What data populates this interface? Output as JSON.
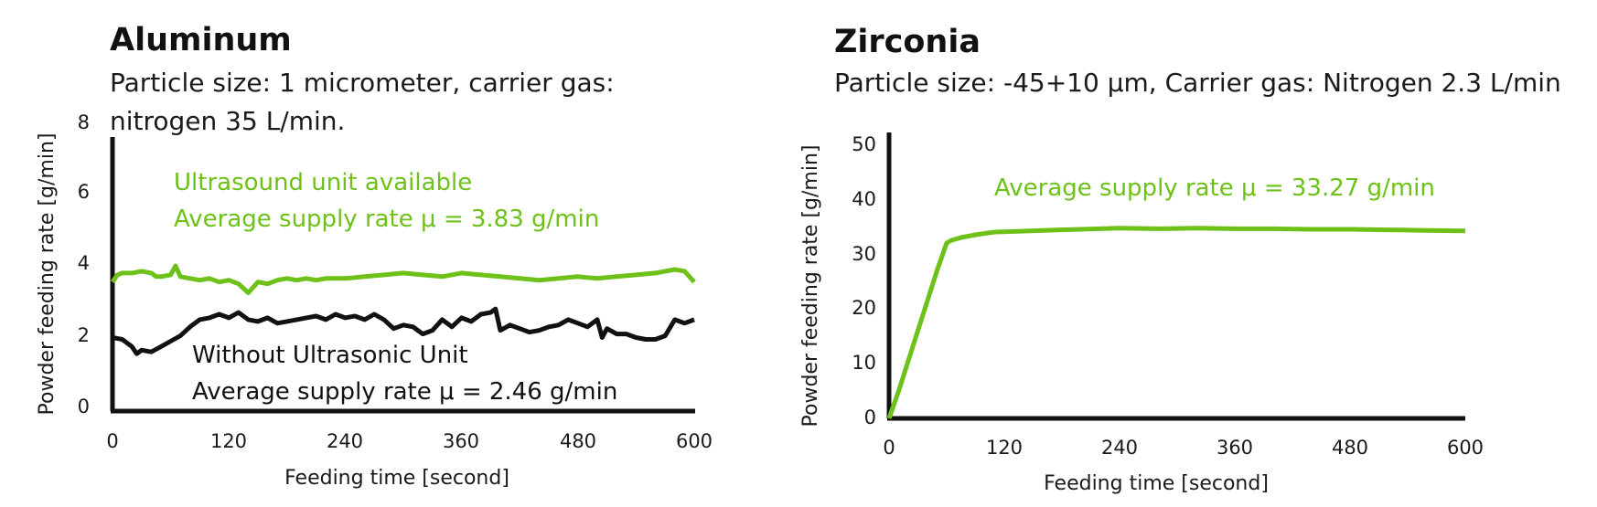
{
  "colors": {
    "green": "#6dc118",
    "black": "#111111"
  },
  "chart_data": [
    {
      "type": "line",
      "title": "Aluminum",
      "subtitle_lines": [
        "Particle size: 1 micrometer, carrier gas:",
        "nitrogen 35 L/min."
      ],
      "xlabel": "Feeding time [second]",
      "ylabel": "Powder feeding rate [g/min]",
      "xlim": [
        0,
        600
      ],
      "ylim": [
        0,
        8
      ],
      "xticks": [
        "0",
        "120",
        "240",
        "360",
        "480",
        "600"
      ],
      "yticks": [
        "0",
        "2",
        "4",
        "6",
        "8"
      ],
      "annotations": [
        {
          "lines": [
            "Ultrasound unit available",
            "Average supply rate μ = 3.83 g/min"
          ],
          "color": "#6dc118"
        },
        {
          "lines": [
            "Without Ultrasonic Unit",
            "Average supply rate μ = 2.46 g/min"
          ],
          "color": "#111111"
        }
      ],
      "series": [
        {
          "color": "#6dc118",
          "x": [
            0,
            5,
            10,
            20,
            30,
            40,
            45,
            50,
            60,
            65,
            70,
            80,
            90,
            100,
            110,
            120,
            130,
            140,
            150,
            160,
            170,
            180,
            190,
            200,
            210,
            220,
            240,
            260,
            280,
            300,
            320,
            340,
            360,
            380,
            400,
            420,
            440,
            460,
            480,
            500,
            520,
            540,
            560,
            580,
            590,
            600
          ],
          "y": [
            3.6,
            3.8,
            3.85,
            3.85,
            3.9,
            3.85,
            3.75,
            3.75,
            3.8,
            4.05,
            3.75,
            3.7,
            3.65,
            3.7,
            3.6,
            3.65,
            3.55,
            3.3,
            3.6,
            3.55,
            3.65,
            3.7,
            3.65,
            3.7,
            3.65,
            3.7,
            3.7,
            3.75,
            3.8,
            3.85,
            3.8,
            3.75,
            3.85,
            3.8,
            3.75,
            3.7,
            3.65,
            3.7,
            3.75,
            3.7,
            3.75,
            3.8,
            3.85,
            3.95,
            3.9,
            3.6
          ]
        },
        {
          "color": "#111111",
          "x": [
            0,
            10,
            20,
            25,
            30,
            40,
            50,
            60,
            70,
            80,
            90,
            100,
            110,
            120,
            130,
            140,
            150,
            160,
            170,
            180,
            190,
            200,
            210,
            220,
            230,
            240,
            250,
            260,
            270,
            280,
            290,
            300,
            310,
            320,
            330,
            340,
            350,
            360,
            370,
            380,
            390,
            395,
            400,
            410,
            420,
            430,
            440,
            450,
            460,
            470,
            480,
            490,
            500,
            505,
            510,
            520,
            530,
            540,
            550,
            560,
            570,
            580,
            590,
            600
          ],
          "y": [
            2.05,
            2.0,
            1.8,
            1.6,
            1.7,
            1.65,
            1.8,
            1.95,
            2.1,
            2.35,
            2.55,
            2.6,
            2.7,
            2.6,
            2.75,
            2.55,
            2.5,
            2.6,
            2.45,
            2.5,
            2.55,
            2.6,
            2.65,
            2.55,
            2.7,
            2.6,
            2.65,
            2.55,
            2.7,
            2.55,
            2.3,
            2.4,
            2.35,
            2.15,
            2.25,
            2.55,
            2.35,
            2.6,
            2.5,
            2.7,
            2.75,
            2.85,
            2.25,
            2.4,
            2.3,
            2.2,
            2.25,
            2.35,
            2.4,
            2.55,
            2.45,
            2.35,
            2.55,
            2.05,
            2.3,
            2.15,
            2.15,
            2.05,
            2.0,
            2.0,
            2.1,
            2.55,
            2.45,
            2.55
          ]
        }
      ]
    },
    {
      "type": "line",
      "title": "Zirconia",
      "subtitle_lines": [
        "Particle size: -45+10 μm, Carrier gas: Nitrogen 2.3 L/min"
      ],
      "xlabel": "Feeding time [second]",
      "ylabel": "Powder feeding rate [g/min]",
      "xlim": [
        0,
        600
      ],
      "ylim": [
        0,
        50
      ],
      "xticks": [
        "0",
        "120",
        "240",
        "360",
        "480",
        "600"
      ],
      "yticks": [
        "0",
        "10",
        "20",
        "30",
        "40",
        "50"
      ],
      "annotations": [
        {
          "lines": [
            "Average supply rate μ = 33.27 g/min"
          ],
          "color": "#6dc118"
        }
      ],
      "series": [
        {
          "color": "#6dc118",
          "x": [
            0,
            10,
            20,
            30,
            40,
            50,
            60,
            65,
            75,
            90,
            110,
            130,
            160,
            200,
            240,
            280,
            320,
            360,
            400,
            440,
            480,
            520,
            560,
            600
          ],
          "y": [
            0,
            5,
            10.5,
            16,
            21.5,
            27,
            32,
            32.5,
            33,
            33.5,
            34,
            34.1,
            34.3,
            34.5,
            34.7,
            34.6,
            34.7,
            34.6,
            34.6,
            34.5,
            34.5,
            34.4,
            34.3,
            34.2
          ]
        }
      ]
    }
  ]
}
